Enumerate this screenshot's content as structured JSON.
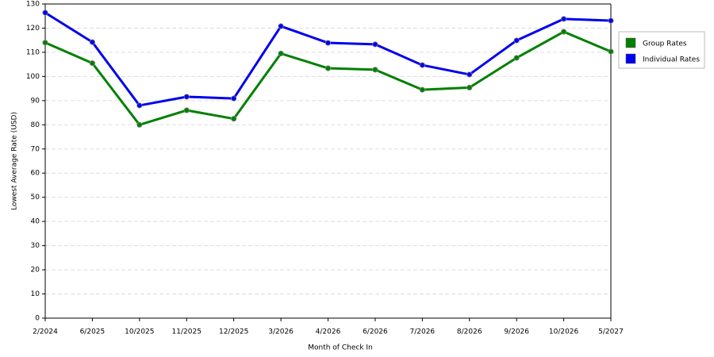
{
  "chart_data": {
    "type": "line",
    "x_label": "Month of Check In",
    "y_label": "Lowest Average Rate (USD)",
    "categories": [
      "2/2024",
      "6/2025",
      "10/2025",
      "11/2025",
      "12/2025",
      "3/2026",
      "4/2026",
      "6/2026",
      "7/2026",
      "8/2026",
      "9/2026",
      "10/2026",
      "5/2027"
    ],
    "series": [
      {
        "name": "Group Rates",
        "color": "#008000",
        "values": [
          114,
          105.5,
          80,
          86,
          82.5,
          109.5,
          103.4,
          102.8,
          94.5,
          95.4,
          107.7,
          118.5,
          110.3
        ]
      },
      {
        "name": "Individual Rates",
        "color": "#0000ee",
        "values": [
          126.4,
          114.2,
          88,
          91.6,
          90.9,
          120.8,
          113.9,
          113.3,
          104.7,
          100.8,
          114.9,
          123.8,
          123.1
        ]
      }
    ],
    "ylim": [
      0,
      130
    ],
    "yticks": [
      0,
      10,
      20,
      30,
      40,
      50,
      60,
      70,
      80,
      90,
      100,
      110,
      120,
      130
    ],
    "grid": true,
    "legend": "right"
  }
}
